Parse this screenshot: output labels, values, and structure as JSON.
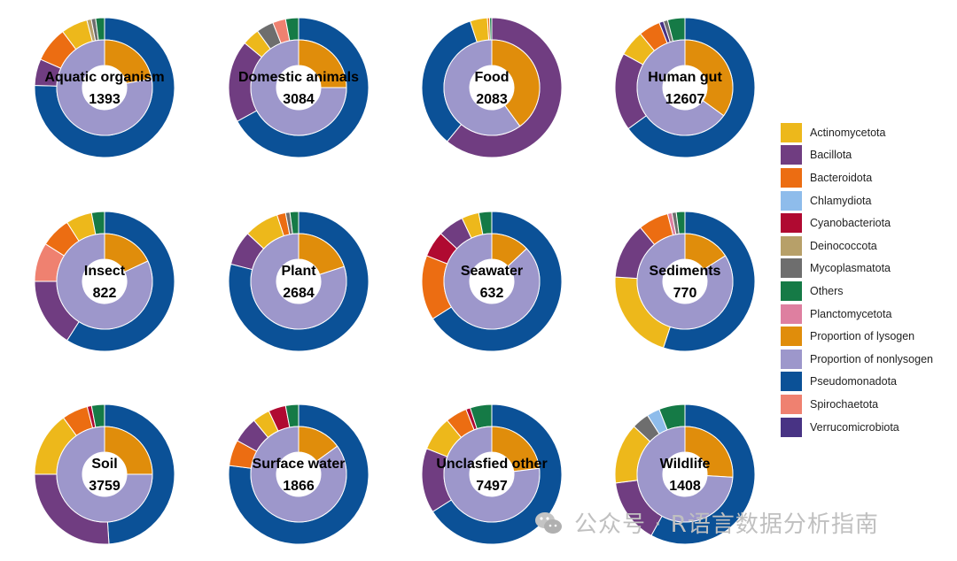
{
  "colors": {
    "Actinomycetota": "#EDB81B",
    "Bacillota": "#703D81",
    "Bacteroidota": "#EC6D12",
    "Chlamydiota": "#8EBCEB",
    "Cyanobacteriota": "#B00A31",
    "Deinococcota": "#B7A069",
    "Mycoplasmatota": "#6E6E6E",
    "Others": "#157A46",
    "Planctomycetota": "#DE7FA0",
    "Proportion of lysogen": "#E08D0B",
    "Proportion of nonlysogen": "#9D97CB",
    "Pseudomonadota": "#0B5197",
    "Spirochaetota": "#EF8170",
    "Verrucomicrobiota": "#483384"
  },
  "legend": [
    "Actinomycetota",
    "Bacillota",
    "Bacteroidota",
    "Chlamydiota",
    "Cyanobacteriota",
    "Deinococcota",
    "Mycoplasmatota",
    "Others",
    "Planctomycetota",
    "Proportion of lysogen",
    "Proportion of nonlysogen",
    "Pseudomonadota",
    "Spirochaetota",
    "Verrucomicrobiota"
  ],
  "watermark": "公众号 · R语言数据分析指南",
  "chart_data": {
    "type": "pie",
    "legend_position": "right",
    "panels": [
      {
        "title": "Aquatic organism",
        "count": "1393",
        "inner": [
          {
            "name": "Proportion of lysogen",
            "value": 22
          },
          {
            "name": "Proportion of nonlysogen",
            "value": 78
          }
        ],
        "outer": [
          {
            "name": "Pseudomonadota",
            "value": 74
          },
          {
            "name": "Bacillota",
            "value": 6
          },
          {
            "name": "Bacteroidota",
            "value": 8
          },
          {
            "name": "Actinomycetota",
            "value": 6
          },
          {
            "name": "Deinococcota",
            "value": 1
          },
          {
            "name": "Mycoplasmatota",
            "value": 1
          },
          {
            "name": "Others",
            "value": 2
          }
        ]
      },
      {
        "title": "Domestic animals",
        "count": "3084",
        "inner": [
          {
            "name": "Proportion of lysogen",
            "value": 25
          },
          {
            "name": "Proportion of nonlysogen",
            "value": 75
          }
        ],
        "outer": [
          {
            "name": "Pseudomonadota",
            "value": 67
          },
          {
            "name": "Bacillota",
            "value": 19
          },
          {
            "name": "Actinomycetota",
            "value": 4
          },
          {
            "name": "Mycoplasmatota",
            "value": 4
          },
          {
            "name": "Spirochaetota",
            "value": 3
          },
          {
            "name": "Others",
            "value": 3
          }
        ]
      },
      {
        "title": "Food",
        "count": "2083",
        "inner": [
          {
            "name": "Proportion of lysogen",
            "value": 40
          },
          {
            "name": "Proportion of nonlysogen",
            "value": 60
          }
        ],
        "outer": [
          {
            "name": "Bacillota",
            "value": 61
          },
          {
            "name": "Pseudomonadota",
            "value": 34
          },
          {
            "name": "Actinomycetota",
            "value": 4
          },
          {
            "name": "Bacteroidota",
            "value": 0.5
          },
          {
            "name": "Others",
            "value": 0.5
          }
        ]
      },
      {
        "title": "Human gut",
        "count": "12607",
        "inner": [
          {
            "name": "Proportion of lysogen",
            "value": 35
          },
          {
            "name": "Proportion of nonlysogen",
            "value": 65
          }
        ],
        "outer": [
          {
            "name": "Pseudomonadota",
            "value": 65
          },
          {
            "name": "Bacillota",
            "value": 18
          },
          {
            "name": "Actinomycetota",
            "value": 6
          },
          {
            "name": "Bacteroidota",
            "value": 5
          },
          {
            "name": "Verrucomicrobiota",
            "value": 1
          },
          {
            "name": "Mycoplasmatota",
            "value": 1
          },
          {
            "name": "Others",
            "value": 4
          }
        ]
      },
      {
        "title": "Insect",
        "count": "822",
        "inner": [
          {
            "name": "Proportion of lysogen",
            "value": 18
          },
          {
            "name": "Proportion of nonlysogen",
            "value": 82
          }
        ],
        "outer": [
          {
            "name": "Pseudomonadota",
            "value": 59
          },
          {
            "name": "Bacillota",
            "value": 16
          },
          {
            "name": "Spirochaetota",
            "value": 9
          },
          {
            "name": "Bacteroidota",
            "value": 7
          },
          {
            "name": "Actinomycetota",
            "value": 6
          },
          {
            "name": "Others",
            "value": 3
          }
        ]
      },
      {
        "title": "Plant",
        "count": "2684",
        "inner": [
          {
            "name": "Proportion of lysogen",
            "value": 20
          },
          {
            "name": "Proportion of nonlysogen",
            "value": 80
          }
        ],
        "outer": [
          {
            "name": "Pseudomonadota",
            "value": 79
          },
          {
            "name": "Bacillota",
            "value": 8
          },
          {
            "name": "Actinomycetota",
            "value": 8
          },
          {
            "name": "Bacteroidota",
            "value": 2
          },
          {
            "name": "Mycoplasmatota",
            "value": 1
          },
          {
            "name": "Others",
            "value": 2
          }
        ]
      },
      {
        "title": "Seawater",
        "count": "632",
        "inner": [
          {
            "name": "Proportion of lysogen",
            "value": 13
          },
          {
            "name": "Proportion of nonlysogen",
            "value": 87
          }
        ],
        "outer": [
          {
            "name": "Pseudomonadota",
            "value": 66
          },
          {
            "name": "Bacteroidota",
            "value": 15
          },
          {
            "name": "Cyanobacteriota",
            "value": 6
          },
          {
            "name": "Bacillota",
            "value": 6
          },
          {
            "name": "Actinomycetota",
            "value": 4
          },
          {
            "name": "Others",
            "value": 3
          }
        ]
      },
      {
        "title": "Sediments",
        "count": "770",
        "inner": [
          {
            "name": "Proportion of lysogen",
            "value": 16
          },
          {
            "name": "Proportion of nonlysogen",
            "value": 84
          }
        ],
        "outer": [
          {
            "name": "Pseudomonadota",
            "value": 55
          },
          {
            "name": "Actinomycetota",
            "value": 21
          },
          {
            "name": "Bacillota",
            "value": 13
          },
          {
            "name": "Bacteroidota",
            "value": 7
          },
          {
            "name": "Planctomycetota",
            "value": 1
          },
          {
            "name": "Mycoplasmatota",
            "value": 1
          },
          {
            "name": "Others",
            "value": 2
          }
        ]
      },
      {
        "title": "Soil",
        "count": "3759",
        "inner": [
          {
            "name": "Proportion of lysogen",
            "value": 25
          },
          {
            "name": "Proportion of nonlysogen",
            "value": 75
          }
        ],
        "outer": [
          {
            "name": "Pseudomonadota",
            "value": 49
          },
          {
            "name": "Bacillota",
            "value": 26
          },
          {
            "name": "Actinomycetota",
            "value": 15
          },
          {
            "name": "Bacteroidota",
            "value": 6
          },
          {
            "name": "Cyanobacteriota",
            "value": 1
          },
          {
            "name": "Others",
            "value": 3
          }
        ]
      },
      {
        "title": "Surface water",
        "count": "1866",
        "inner": [
          {
            "name": "Proportion of lysogen",
            "value": 15
          },
          {
            "name": "Proportion of nonlysogen",
            "value": 85
          }
        ],
        "outer": [
          {
            "name": "Pseudomonadota",
            "value": 77
          },
          {
            "name": "Bacteroidota",
            "value": 6
          },
          {
            "name": "Bacillota",
            "value": 6
          },
          {
            "name": "Actinomycetota",
            "value": 4
          },
          {
            "name": "Cyanobacteriota",
            "value": 4
          },
          {
            "name": "Others",
            "value": 3
          }
        ]
      },
      {
        "title": "Unclasfied other",
        "count": "7497",
        "inner": [
          {
            "name": "Proportion of lysogen",
            "value": 23
          },
          {
            "name": "Proportion of nonlysogen",
            "value": 77
          }
        ],
        "outer": [
          {
            "name": "Pseudomonadota",
            "value": 66
          },
          {
            "name": "Bacillota",
            "value": 15
          },
          {
            "name": "Actinomycetota",
            "value": 8
          },
          {
            "name": "Bacteroidota",
            "value": 5
          },
          {
            "name": "Cyanobacteriota",
            "value": 1
          },
          {
            "name": "Others",
            "value": 5
          }
        ]
      },
      {
        "title": "Wildlife",
        "count": "1408",
        "inner": [
          {
            "name": "Proportion of lysogen",
            "value": 26
          },
          {
            "name": "Proportion of nonlysogen",
            "value": 74
          }
        ],
        "outer": [
          {
            "name": "Pseudomonadota",
            "value": 58
          },
          {
            "name": "Bacillota",
            "value": 15
          },
          {
            "name": "Actinomycetota",
            "value": 14
          },
          {
            "name": "Mycoplasmatota",
            "value": 4
          },
          {
            "name": "Chlamydiota",
            "value": 3
          },
          {
            "name": "Others",
            "value": 6
          }
        ]
      }
    ]
  }
}
